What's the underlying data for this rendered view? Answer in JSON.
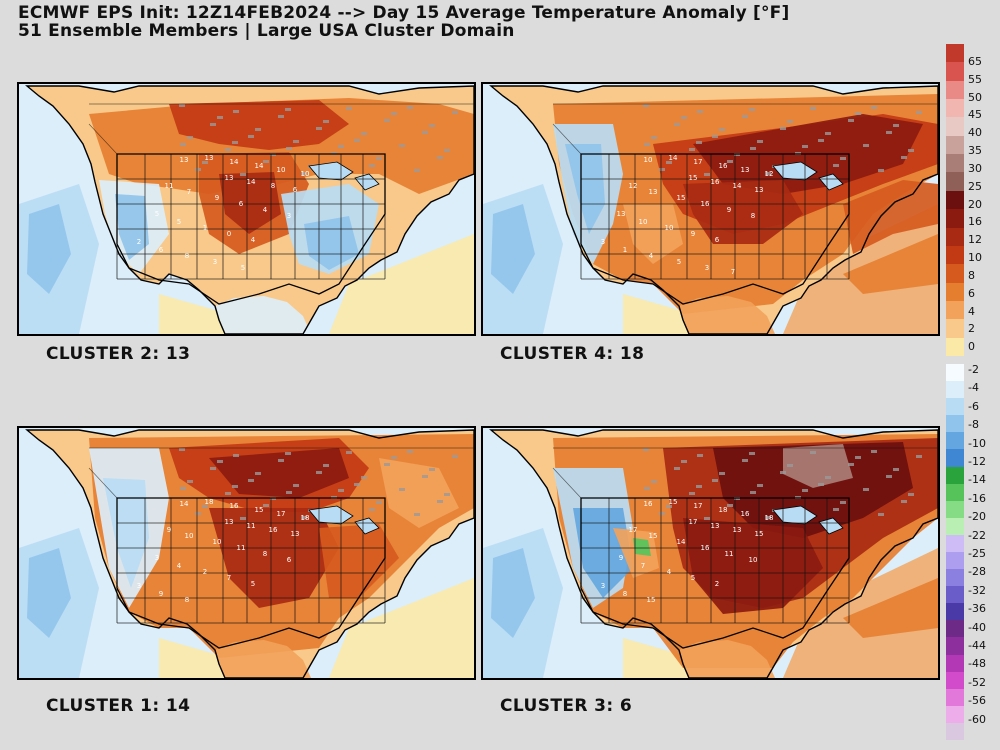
{
  "header": {
    "line1": "ECMWF EPS Init: 12Z14FEB2024 --> Day 15 Average Temperature Anomaly [°F]",
    "line2": "51 Ensemble Members | Large USA Cluster Domain"
  },
  "panels": [
    {
      "label": "CLUSTER 2: 13",
      "theme": "cool-east",
      "values": [
        "13",
        "13",
        "14",
        "14",
        "10",
        "10",
        "13",
        "14",
        "8",
        "6",
        "11",
        "7",
        "9",
        "6",
        "4",
        "3",
        "5",
        "5",
        "1",
        "0",
        "4",
        "2",
        "6",
        "8",
        "3",
        "5"
      ]
    },
    {
      "label": "CLUSTER 4: 18",
      "theme": "warm",
      "values": [
        "10",
        "14",
        "17",
        "16",
        "13",
        "12",
        "15",
        "16",
        "14",
        "13",
        "12",
        "13",
        "15",
        "16",
        "9",
        "8",
        "13",
        "10",
        "10",
        "9",
        "6",
        "3",
        "1",
        "4",
        "5",
        "3",
        "7"
      ]
    },
    {
      "label": "CLUSTER 1: 14",
      "theme": "warm-central",
      "values": [
        "14",
        "18",
        "16",
        "15",
        "17",
        "18",
        "13",
        "11",
        "16",
        "13",
        "9",
        "10",
        "10",
        "11",
        "8",
        "6",
        "3",
        "4",
        "2",
        "7",
        "5",
        "3",
        "9",
        "8"
      ]
    },
    {
      "label": "CLUSTER 3: 6",
      "theme": "hot-east",
      "values": [
        "16",
        "15",
        "17",
        "18",
        "16",
        "18",
        "17",
        "13",
        "13",
        "15",
        "17",
        "15",
        "14",
        "16",
        "11",
        "10",
        "9",
        "7",
        "4",
        "5",
        "2",
        "3",
        "8",
        "15"
      ]
    }
  ],
  "colorbar": {
    "labels": [
      "65",
      "55",
      "50",
      "45",
      "40",
      "35",
      "30",
      "25",
      "20",
      "16",
      "12",
      "10",
      "8",
      "6",
      "4",
      "2",
      "0",
      "-2",
      "-4",
      "-6",
      "-8",
      "-10",
      "-12",
      "-14",
      "-16",
      "-20",
      "-22",
      "-25",
      "-28",
      "-32",
      "-36",
      "-40",
      "-44",
      "-48",
      "-52",
      "-56",
      "-60"
    ],
    "colors": [
      "#c0392b",
      "#d9534f",
      "#e98a86",
      "#f2b6b0",
      "#e9c9c4",
      "#c9a39b",
      "#a97e76",
      "#8f6058",
      "#6b0f0f",
      "#8b1a10",
      "#a82a12",
      "#c23a14",
      "#d65a1e",
      "#e67e30",
      "#f2a25a",
      "#f8c98a",
      "#fbe9a8",
      "#f6fbff",
      "#dbeefa",
      "#b8dcf3",
      "#90c4ec",
      "#64a7e0",
      "#3f87d2",
      "#2aa33c",
      "#55c35a",
      "#86dc84",
      "#b9efb3",
      "#cdbcf5",
      "#ad9ef0",
      "#8b7fe0",
      "#6a5cc9",
      "#4a3aa8",
      "#6d2a86",
      "#8e2f9e",
      "#b238b5",
      "#d24bcb",
      "#e178da",
      "#ecadea",
      "#d9c8e0"
    ]
  }
}
